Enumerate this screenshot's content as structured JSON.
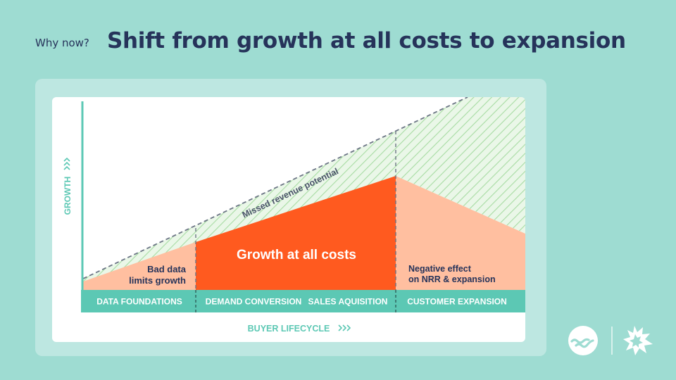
{
  "header": {
    "kicker": "Why now?",
    "title": "Shift from growth at all costs to expansion"
  },
  "diagram": {
    "y_axis_label": "GROWTH",
    "y_axis_chevrons": "»",
    "x_axis_label": "BUYER LIFECYCLE",
    "x_axis_chevrons": "»»",
    "missed_label": "Missed revenue potential",
    "bad_data_line1": "Bad data",
    "bad_data_line2": "limits growth",
    "main_label": "Growth at all costs",
    "negative_line1": "Negative effect",
    "negative_line2": "on NRR & expansion",
    "stages": [
      "DATA FOUNDATIONS",
      "DEMAND CONVERSION",
      "SALES AQUISITION",
      "CUSTOMER EXPANSION"
    ],
    "colors": {
      "accent_teal": "#5cc8b4",
      "growth_orange": "#ff5a1f",
      "light_salmon": "#ffbfa0",
      "hatch_green": "#b5e3b0",
      "navy": "#26335a"
    }
  },
  "logos": {
    "left": "brand-wave-logo",
    "right": "brand-burst-logo"
  }
}
